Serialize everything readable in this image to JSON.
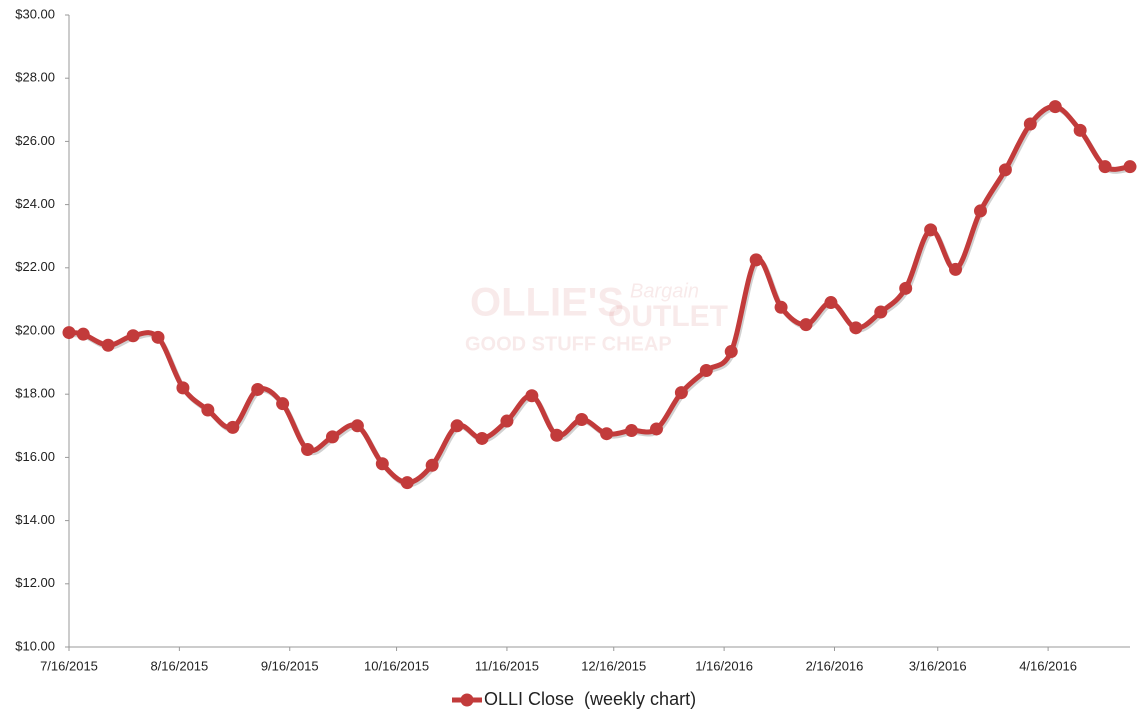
{
  "chart_data": {
    "type": "line",
    "x": [
      "7/16/2015",
      "7/20/2015",
      "7/27/2015",
      "8/3/2015",
      "8/10/2015",
      "8/17/2015",
      "8/24/2015",
      "8/31/2015",
      "9/7/2015",
      "9/14/2015",
      "9/21/2015",
      "9/28/2015",
      "10/5/2015",
      "10/12/2015",
      "10/19/2015",
      "10/26/2015",
      "11/2/2015",
      "11/9/2015",
      "11/16/2015",
      "11/23/2015",
      "11/30/2015",
      "12/7/2015",
      "12/14/2015",
      "12/21/2015",
      "12/28/2015",
      "1/4/2016",
      "1/11/2016",
      "1/18/2016",
      "1/25/2016",
      "2/1/2016",
      "2/8/2016",
      "2/15/2016",
      "2/22/2016",
      "2/29/2016",
      "3/7/2016",
      "3/14/2016",
      "3/21/2016",
      "3/28/2016",
      "4/4/2016",
      "4/11/2016",
      "4/18/2016",
      "4/25/2016",
      "5/2/2016",
      "5/9/2016"
    ],
    "series": [
      {
        "name": "OLLI Close  (weekly chart)",
        "color": "#c23b3b",
        "values": [
          19.95,
          19.9,
          19.55,
          19.85,
          19.8,
          18.2,
          17.5,
          16.95,
          18.15,
          17.7,
          16.25,
          16.65,
          17.0,
          15.8,
          15.2,
          15.75,
          17.0,
          16.6,
          17.15,
          17.95,
          16.7,
          17.2,
          16.75,
          16.85,
          16.9,
          18.05,
          18.75,
          19.35,
          22.25,
          20.75,
          20.2,
          20.9,
          20.1,
          20.6,
          21.35,
          23.2,
          21.95,
          23.8,
          25.1,
          26.55,
          27.1,
          26.35,
          25.2,
          25.2
        ]
      }
    ],
    "xlim": [
      "7/16/2015",
      "5/9/2016"
    ],
    "xticks": [
      "7/16/2015",
      "8/16/2015",
      "9/16/2015",
      "10/16/2015",
      "11/16/2015",
      "12/16/2015",
      "1/16/2016",
      "2/16/2016",
      "3/16/2016",
      "4/16/2016"
    ],
    "ylim": [
      10,
      30
    ],
    "yticks": [
      {
        "value": 10,
        "label": "$10.00"
      },
      {
        "value": 12,
        "label": "$12.00"
      },
      {
        "value": 14,
        "label": "$14.00"
      },
      {
        "value": 16,
        "label": "$16.00"
      },
      {
        "value": 18,
        "label": "$18.00"
      },
      {
        "value": 20,
        "label": "$20.00"
      },
      {
        "value": 22,
        "label": "$22.00"
      },
      {
        "value": 24,
        "label": "$24.00"
      },
      {
        "value": 26,
        "label": "$26.00"
      },
      {
        "value": 28,
        "label": "$28.00"
      },
      {
        "value": 30,
        "label": "$30.00"
      }
    ],
    "grid": false,
    "smooth": true,
    "legend": "bottom",
    "watermark": [
      "OLLIE'S",
      "Bargain",
      "OUTLET",
      "GOOD STUFF CHEAP"
    ]
  }
}
